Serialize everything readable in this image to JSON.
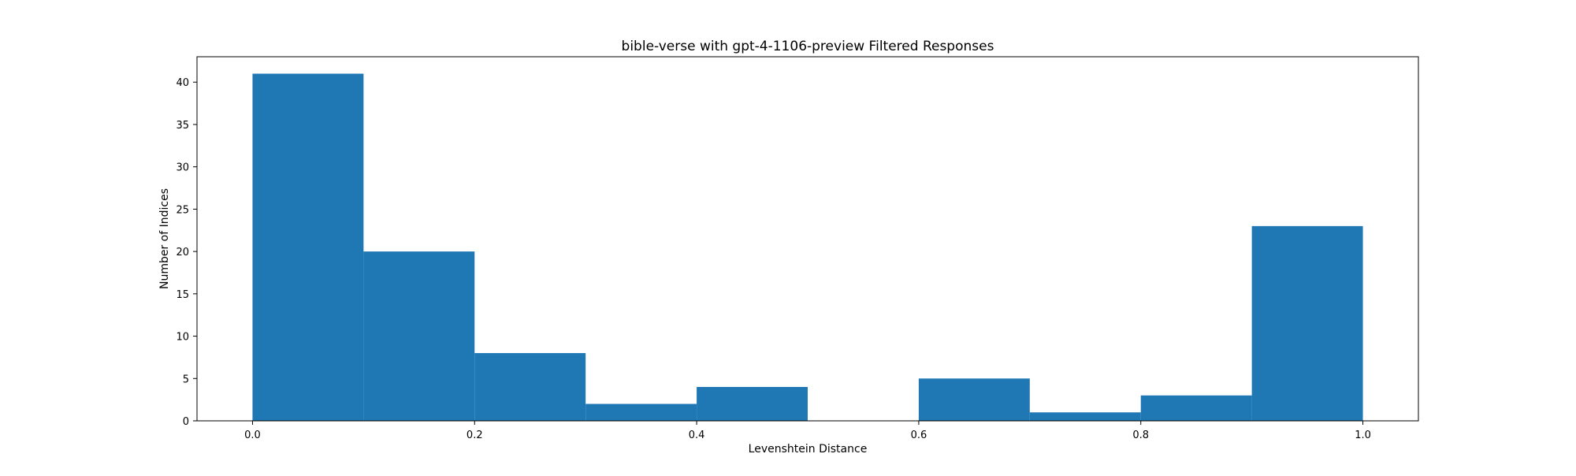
{
  "chart_data": {
    "type": "bar",
    "title": "bible-verse with gpt-4-1106-preview Filtered Responses",
    "xlabel": "Levenshtein Distance",
    "ylabel": "Number of Indices",
    "bins": [
      [
        0.0,
        0.1
      ],
      [
        0.1,
        0.2
      ],
      [
        0.2,
        0.3
      ],
      [
        0.3,
        0.4
      ],
      [
        0.4,
        0.5
      ],
      [
        0.5,
        0.6
      ],
      [
        0.6,
        0.7
      ],
      [
        0.7,
        0.8
      ],
      [
        0.8,
        0.9
      ],
      [
        0.9,
        1.0
      ]
    ],
    "values": [
      41,
      20,
      8,
      2,
      4,
      0,
      5,
      1,
      3,
      23
    ],
    "xlim": [
      -0.05,
      1.05
    ],
    "ylim": [
      0,
      43
    ],
    "xticks": [
      "0.0",
      "0.2",
      "0.4",
      "0.6",
      "0.8",
      "1.0"
    ],
    "yticks": [
      "0",
      "5",
      "10",
      "15",
      "20",
      "25",
      "30",
      "35",
      "40"
    ],
    "grid": false,
    "bar_color": "#1f77b4"
  }
}
